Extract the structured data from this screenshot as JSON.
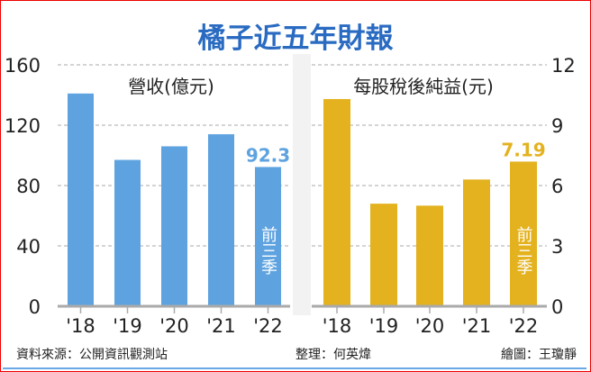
{
  "title": "橘子近五年財報",
  "chart_data": [
    {
      "type": "bar",
      "title": "營收(億元)",
      "categories": [
        "'18",
        "'19",
        "'20",
        "'21",
        "'22"
      ],
      "values": [
        141,
        97,
        106,
        114,
        92.3
      ],
      "value_label": "92.3",
      "note_last_bar": "前三季",
      "yticks": [
        "0",
        "40",
        "80",
        "120",
        "160"
      ],
      "ylim": [
        0,
        160
      ],
      "axis_side": "left",
      "grid": true,
      "color": "#5ea3e0"
    },
    {
      "type": "bar",
      "title": "每股稅後純益(元)",
      "categories": [
        "'18",
        "'19",
        "'20",
        "'21",
        "'22"
      ],
      "values": [
        10.3,
        5.1,
        5.0,
        6.3,
        7.19
      ],
      "value_label": "7.19",
      "note_last_bar": "前三季",
      "yticks": [
        "0",
        "3",
        "6",
        "9",
        "12"
      ],
      "ylim": [
        0,
        12
      ],
      "axis_side": "right",
      "grid": true,
      "color": "#e3b21e"
    }
  ],
  "footer": {
    "source": "資料來源：公開資訊觀測站",
    "editor": "整理：何英煒",
    "artist": "繪圖：王瓊靜"
  }
}
